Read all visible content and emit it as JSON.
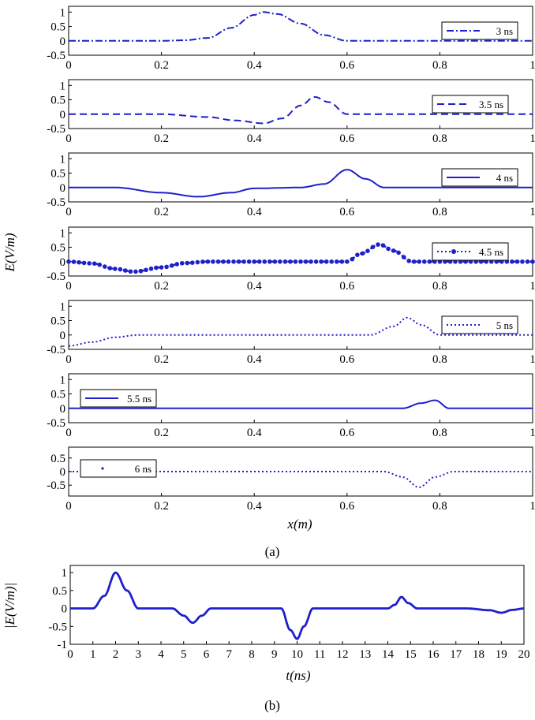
{
  "figure": {
    "caption_a": "(a)",
    "caption_b": "(b)",
    "line_color": "#1f1fcc"
  },
  "chart_data": [
    {
      "type": "line",
      "panel": "a",
      "ylabel": "E(V/m)",
      "xlabel": "x(m)",
      "xlim": [
        0,
        1
      ],
      "x_ticks": [
        "0",
        "0.2",
        "0.4",
        "0.6",
        "0.8",
        "1"
      ],
      "subplots": [
        {
          "series_name": "3 ns",
          "style": "dashdot",
          "legend": "right",
          "ylim": [
            -0.5,
            1.2
          ],
          "y_ticks": [
            "1",
            "0.5",
            "0",
            "-0.5"
          ],
          "x": [
            0,
            0.2,
            0.25,
            0.3,
            0.35,
            0.4,
            0.42,
            0.45,
            0.5,
            0.55,
            0.6,
            0.65,
            1
          ],
          "y": [
            0,
            0,
            0.02,
            0.1,
            0.45,
            0.9,
            1.0,
            0.93,
            0.6,
            0.2,
            0,
            0,
            0
          ]
        },
        {
          "series_name": "3.5 ns",
          "style": "dashed",
          "legend": "right",
          "ylim": [
            -0.5,
            1.2
          ],
          "y_ticks": [
            "1",
            "0.5",
            "0",
            "-0.5"
          ],
          "x": [
            0,
            0.2,
            0.3,
            0.36,
            0.42,
            0.46,
            0.5,
            0.53,
            0.56,
            0.6,
            1
          ],
          "y": [
            0,
            0,
            -0.1,
            -0.22,
            -0.32,
            -0.15,
            0.3,
            0.6,
            0.42,
            0,
            0
          ]
        },
        {
          "series_name": "4 ns",
          "style": "solid",
          "legend": "right",
          "ylim": [
            -0.5,
            1.2
          ],
          "y_ticks": [
            "1",
            "0.5",
            "0",
            "-0.5"
          ],
          "x": [
            0,
            0.1,
            0.2,
            0.28,
            0.35,
            0.4,
            0.5,
            0.55,
            0.6,
            0.64,
            0.68,
            1
          ],
          "y": [
            0,
            0,
            -0.18,
            -0.32,
            -0.18,
            -0.03,
            0,
            0.12,
            0.62,
            0.3,
            0,
            0
          ]
        },
        {
          "series_name": "4.5 ns",
          "style": "dotted-marker",
          "legend": "right",
          "ylim": [
            -0.5,
            1.2
          ],
          "y_ticks": [
            "1",
            "0.5",
            "0",
            "-0.5"
          ],
          "x": [
            0,
            0.05,
            0.1,
            0.14,
            0.2,
            0.25,
            0.3,
            0.6,
            0.63,
            0.67,
            0.7,
            0.74,
            1
          ],
          "y": [
            0,
            -0.06,
            -0.25,
            -0.35,
            -0.2,
            -0.05,
            0,
            0,
            0.28,
            0.6,
            0.38,
            0,
            0
          ]
        },
        {
          "series_name": "5 ns",
          "style": "dotted",
          "legend": "right",
          "ylim": [
            -0.5,
            1.2
          ],
          "y_ticks": [
            "1",
            "0.5",
            "0",
            "-0.5"
          ],
          "x": [
            0,
            0.05,
            0.1,
            0.15,
            0.2,
            0.65,
            0.7,
            0.73,
            0.76,
            0.8,
            1
          ],
          "y": [
            -0.38,
            -0.25,
            -0.08,
            0,
            0,
            0,
            0.3,
            0.6,
            0.35,
            0,
            0
          ]
        },
        {
          "series_name": "5.5 ns",
          "style": "solid",
          "legend": "left",
          "ylim": [
            -0.5,
            1.2
          ],
          "y_ticks": [
            "1",
            "0.5",
            "0",
            "-0.5"
          ],
          "x": [
            0,
            0.72,
            0.76,
            0.79,
            0.82,
            1
          ],
          "y": [
            0,
            0,
            0.18,
            0.28,
            0,
            0
          ]
        },
        {
          "series_name": "6 ns",
          "style": "dotted",
          "legend": "left",
          "ylim": [
            -0.9,
            0.9
          ],
          "y_ticks": [
            "0.5",
            "0",
            "-0.5"
          ],
          "x": [
            0,
            0.68,
            0.72,
            0.755,
            0.79,
            0.83,
            1
          ],
          "y": [
            0,
            0,
            -0.2,
            -0.58,
            -0.2,
            0,
            0
          ]
        }
      ]
    },
    {
      "type": "line",
      "panel": "b",
      "ylabel": "|E(V/m)|",
      "xlabel": "t(ns)",
      "xlim": [
        0,
        20
      ],
      "ylim": [
        -1,
        1.2
      ],
      "y_ticks": [
        "1",
        "0.5",
        "0",
        "-0.5",
        "-1"
      ],
      "x_ticks": [
        "0",
        "1",
        "2",
        "3",
        "4",
        "5",
        "6",
        "7",
        "8",
        "9",
        "10",
        "11",
        "12",
        "13",
        "14",
        "15",
        "16",
        "17",
        "18",
        "19",
        "20"
      ],
      "x": [
        0,
        1.0,
        1.5,
        2.0,
        2.5,
        3.0,
        4.5,
        5.0,
        5.4,
        5.8,
        6.2,
        9.3,
        9.7,
        10.0,
        10.3,
        10.7,
        14.0,
        14.3,
        14.6,
        14.9,
        15.3,
        17.5,
        18.5,
        19.0,
        19.5,
        20.0
      ],
      "y": [
        0,
        0,
        0.35,
        1.0,
        0.5,
        0,
        0,
        -0.2,
        -0.4,
        -0.2,
        0,
        0,
        -0.6,
        -0.85,
        -0.5,
        0,
        0,
        0.1,
        0.32,
        0.15,
        0,
        0,
        -0.05,
        -0.12,
        -0.04,
        0
      ]
    }
  ]
}
